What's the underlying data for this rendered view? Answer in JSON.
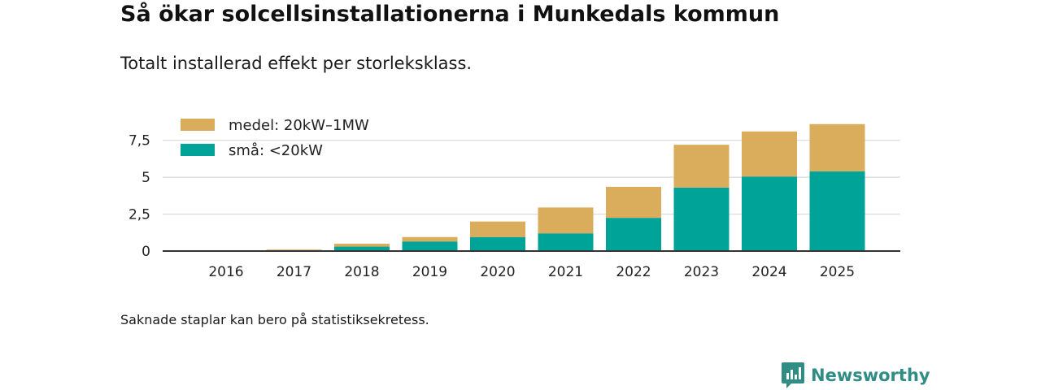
{
  "header": {
    "title": "Så ökar solcellsinstallationerna i Munkedals kommun",
    "subtitle": "Totalt installerad effekt per storleksklass."
  },
  "footnote": "Saknade staplar kan bero på statistiksekretess.",
  "brand": {
    "name": "Newsworthy",
    "color": "#2f8d86",
    "icon": "newsworthy-logo-icon"
  },
  "chart_data": {
    "type": "bar",
    "stacked": true,
    "title": "Så ökar solcellsinstallationerna i Munkedals kommun",
    "subtitle": "Totalt installerad effekt per storleksklass.",
    "xlabel": "",
    "ylabel": "",
    "ylim": [
      0,
      8.8
    ],
    "yticks": [
      {
        "value": 0,
        "label": "0"
      },
      {
        "value": 2.5,
        "label": "2,5"
      },
      {
        "value": 5,
        "label": "5"
      },
      {
        "value": 7.5,
        "label": "7,5"
      }
    ],
    "categories": [
      "2016",
      "2017",
      "2018",
      "2019",
      "2020",
      "2021",
      "2022",
      "2023",
      "2024",
      "2025"
    ],
    "series": [
      {
        "name": "små: <20kW",
        "color": "#00a398",
        "values": [
          0.01,
          0.05,
          0.3,
          0.65,
          0.95,
          1.2,
          2.25,
          4.3,
          5.05,
          5.4
        ]
      },
      {
        "name": "medel: 20kW–1MW",
        "color": "#d9ad5b",
        "values": [
          0.0,
          0.05,
          0.2,
          0.3,
          1.05,
          1.75,
          2.1,
          2.9,
          3.05,
          3.2
        ]
      }
    ],
    "legend": {
      "position": "top-left",
      "order": [
        "medel: 20kW–1MW",
        "små: <20kW"
      ]
    },
    "grid": true
  }
}
